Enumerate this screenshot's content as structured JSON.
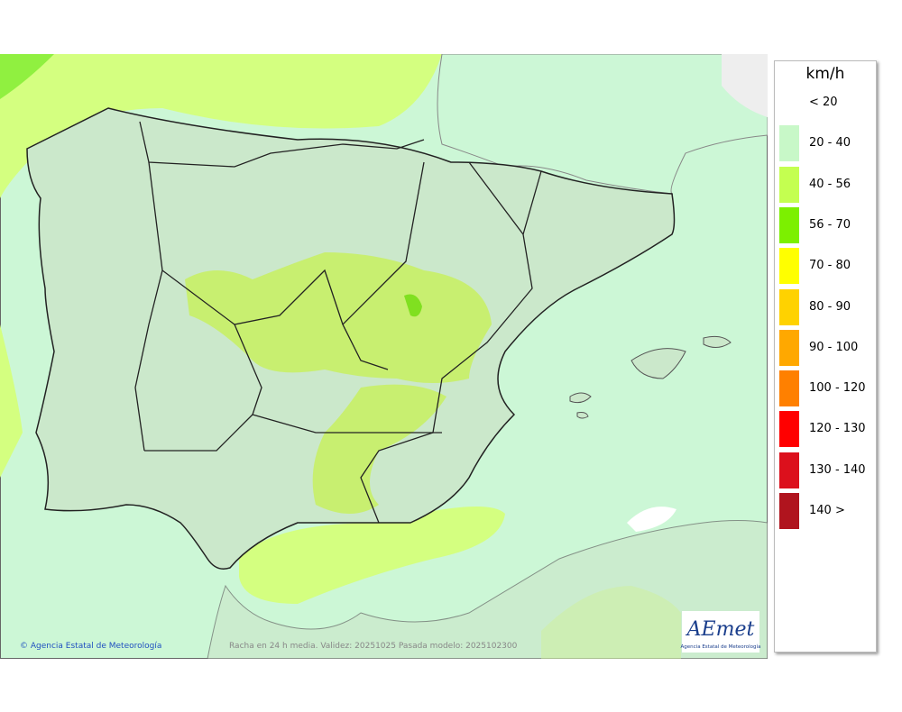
{
  "legend": {
    "title": "km/h",
    "items": [
      {
        "label": "< 20",
        "color": null
      },
      {
        "label": "20 - 40",
        "color": "#c8f8c8"
      },
      {
        "label": "40 - 56",
        "color": "#c4ff50"
      },
      {
        "label": "56 - 70",
        "color": "#7cf000"
      },
      {
        "label": "70 - 80",
        "color": "#ffff00"
      },
      {
        "label": "80 - 90",
        "color": "#ffd200"
      },
      {
        "label": "90 - 100",
        "color": "#ffa800"
      },
      {
        "label": "100 - 120",
        "color": "#ff8000"
      },
      {
        "label": "120 - 130",
        "color": "#ff0000"
      },
      {
        "label": "130 - 140",
        "color": "#dc101c"
      },
      {
        "label": "140 >",
        "color": "#b0141e"
      }
    ]
  },
  "footer": {
    "credit": "© Agencia Estatal de Meteorología",
    "caption": "Racha en 24 h media. Validez: 20251025 Pasada modelo: 2025102300"
  },
  "logo": {
    "name": "AEmet",
    "subtitle": "Agencia Estatal de Meteorología"
  }
}
